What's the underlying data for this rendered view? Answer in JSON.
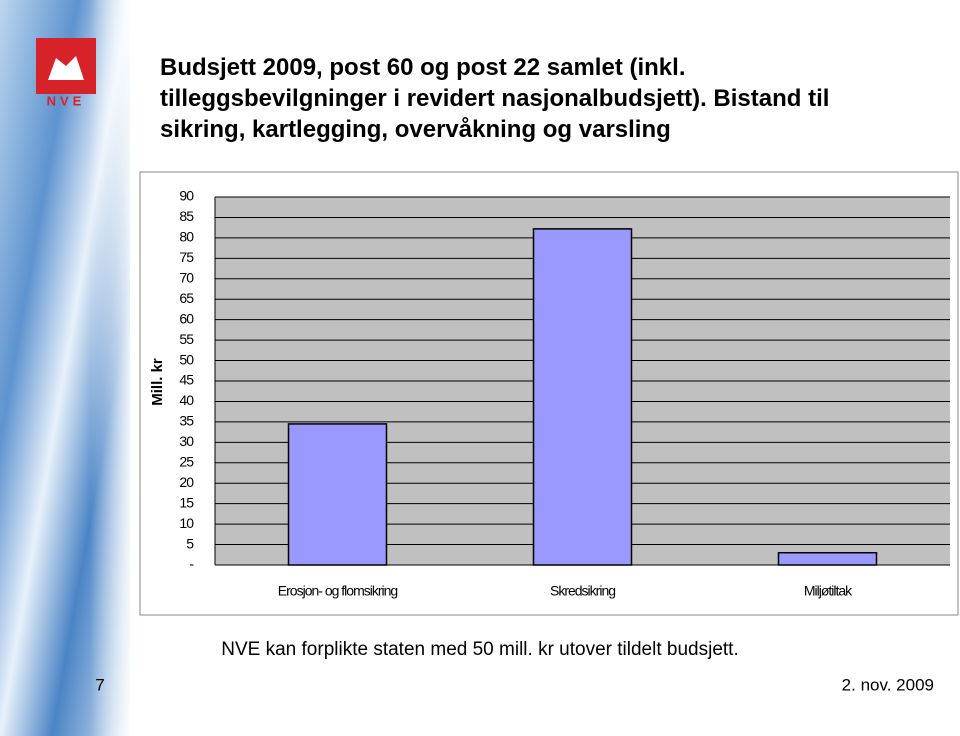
{
  "logo": "NVE",
  "chart_data": {
    "type": "bar",
    "title": "Budsjett 2009, post 60 og post 22 samlet (inkl. tilleggsbevilgninger i revidert nasjonalbudsjett). Bistand til sikring, kartlegging, overvåkning og varsling",
    "y_label": "Mill. kr",
    "categories": [
      "Erosjon- og flomsikring",
      "Skredsikring",
      "Miljøtiltak"
    ],
    "values": [
      34.5,
      82.2,
      3
    ],
    "color": "#9999ff",
    "ylim": [
      0,
      90
    ],
    "yticks": [
      {
        "value": 0,
        "label": "-"
      },
      5,
      10,
      15,
      20,
      25,
      30,
      35,
      40,
      45,
      50,
      55,
      60,
      65,
      70,
      75,
      80,
      85,
      90
    ],
    "grid": true
  },
  "footer": {
    "note": "NVE kan forplikte staten med 50 mill. kr utover tildelt budsjett.",
    "page": "7",
    "date": "2. nov. 2009"
  }
}
